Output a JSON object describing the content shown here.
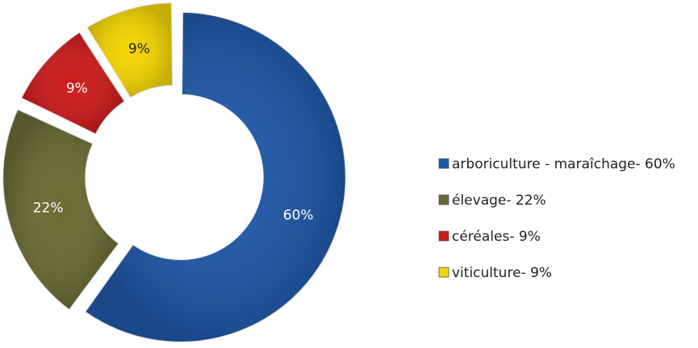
{
  "chart_data": {
    "type": "pie",
    "subtype": "donut",
    "title": "",
    "slices": [
      {
        "label": "arboriculture - maraîchage",
        "value": 60,
        "data_label": "60%",
        "color": "#1f57a8"
      },
      {
        "label": "élevage",
        "value": 22,
        "data_label": "22%",
        "color": "#6b6a33"
      },
      {
        "label": "céréales",
        "value": 9,
        "data_label": "9%",
        "color": "#cc1b1b"
      },
      {
        "label": "viticulture",
        "value": 9,
        "data_label": "9%",
        "color": "#f3d400"
      }
    ],
    "legend": {
      "position": "right",
      "entries": [
        "arboriculture - maraîchage- 60%",
        "élevage- 22%",
        "céréales- 9%",
        "viticulture- 9%"
      ]
    }
  }
}
